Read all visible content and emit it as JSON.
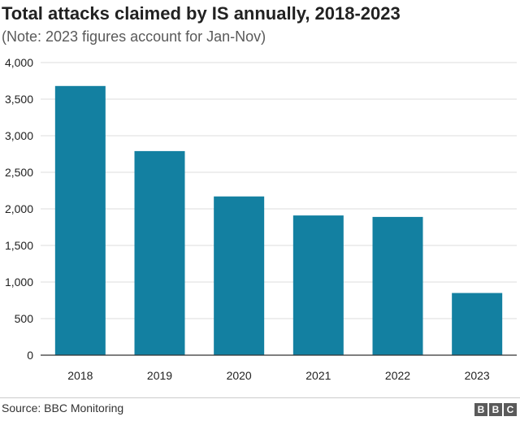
{
  "chart_data": {
    "type": "bar",
    "title": "Total attacks claimed by IS annually, 2018-2023",
    "subtitle": "(Note: 2023 figures account for Jan-Nov)",
    "categories": [
      "2018",
      "2019",
      "2020",
      "2021",
      "2022",
      "2023"
    ],
    "values": [
      3680,
      2790,
      2170,
      1910,
      1890,
      850
    ],
    "ylim": [
      0,
      4000
    ],
    "yticks": [
      0,
      500,
      1000,
      1500,
      2000,
      2500,
      3000,
      3500,
      4000
    ],
    "ytick_labels": [
      "0",
      "500",
      "1,000",
      "1,500",
      "2,000",
      "2,500",
      "3,000",
      "3,500",
      "4,000"
    ],
    "grid": true,
    "bar_color": "#1380A1",
    "source": "Source: BBC Monitoring"
  },
  "brand": {
    "letters": [
      "B",
      "B",
      "C"
    ]
  }
}
